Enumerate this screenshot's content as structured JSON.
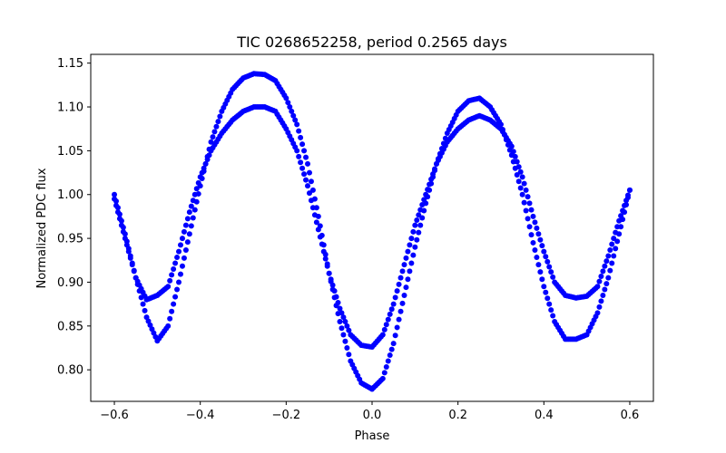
{
  "chart_data": {
    "type": "scatter",
    "title": "TIC 0268652258, period 0.2565 days",
    "xlabel": "Phase",
    "ylabel": "Normalized PDC flux",
    "xlim": [
      -0.655,
      0.655
    ],
    "ylim": [
      0.764,
      1.16
    ],
    "xticks": [
      -0.6,
      -0.4,
      -0.2,
      0.0,
      0.2,
      0.4,
      0.6
    ],
    "xtick_labels": [
      "−0.6",
      "−0.4",
      "−0.2",
      "0.0",
      "0.2",
      "0.4",
      "0.6"
    ],
    "yticks": [
      0.8,
      0.85,
      0.9,
      0.95,
      1.0,
      1.05,
      1.1,
      1.15
    ],
    "ytick_labels": [
      "0.80",
      "0.85",
      "0.90",
      "0.95",
      "1.00",
      "1.05",
      "1.10",
      "1.15"
    ],
    "grid": false,
    "marker_color": "#0000ff",
    "series": [
      {
        "x": [
          -0.6,
          -0.575,
          -0.55,
          -0.525,
          -0.5,
          -0.475,
          -0.45,
          -0.425,
          -0.4,
          -0.375,
          -0.35,
          -0.325,
          -0.3,
          -0.275,
          -0.25,
          -0.225,
          -0.2,
          -0.175,
          -0.15,
          -0.125,
          -0.1,
          -0.075,
          -0.05,
          -0.025,
          0.0,
          0.025,
          0.05,
          0.075,
          0.1,
          0.125,
          0.15,
          0.175,
          0.2,
          0.225,
          0.25,
          0.275,
          0.3,
          0.325,
          0.35,
          0.375,
          0.4,
          0.425,
          0.45,
          0.475,
          0.5,
          0.525,
          0.55,
          0.575,
          0.6
        ],
        "y": [
          0.995,
          0.95,
          0.905,
          0.88,
          0.885,
          0.895,
          0.935,
          0.98,
          1.02,
          1.05,
          1.07,
          1.085,
          1.095,
          1.1,
          1.1,
          1.095,
          1.075,
          1.05,
          1.01,
          0.96,
          0.91,
          0.87,
          0.84,
          0.828,
          0.826,
          0.84,
          0.875,
          0.92,
          0.965,
          1.0,
          1.035,
          1.06,
          1.075,
          1.085,
          1.09,
          1.085,
          1.075,
          1.055,
          1.02,
          0.975,
          0.935,
          0.9,
          0.885,
          0.882,
          0.884,
          0.895,
          0.93,
          0.97,
          1.005
        ]
      },
      {
        "x": [
          -0.6,
          -0.575,
          -0.55,
          -0.525,
          -0.5,
          -0.475,
          -0.45,
          -0.425,
          -0.4,
          -0.375,
          -0.35,
          -0.325,
          -0.3,
          -0.275,
          -0.25,
          -0.225,
          -0.2,
          -0.175,
          -0.15,
          -0.125,
          -0.1,
          -0.075,
          -0.05,
          -0.025,
          0.0,
          0.025,
          0.05,
          0.075,
          0.1,
          0.125,
          0.15,
          0.175,
          0.2,
          0.225,
          0.25,
          0.275,
          0.3,
          0.325,
          0.35,
          0.375,
          0.4,
          0.425,
          0.45,
          0.475,
          0.5,
          0.525,
          0.55,
          0.575,
          0.6
        ],
        "y": [
          1.0,
          0.955,
          0.905,
          0.86,
          0.833,
          0.85,
          0.9,
          0.955,
          1.01,
          1.06,
          1.095,
          1.12,
          1.133,
          1.138,
          1.137,
          1.13,
          1.11,
          1.08,
          1.035,
          0.975,
          0.91,
          0.855,
          0.81,
          0.785,
          0.778,
          0.79,
          0.83,
          0.885,
          0.94,
          0.99,
          1.035,
          1.07,
          1.095,
          1.107,
          1.11,
          1.1,
          1.08,
          1.045,
          1.0,
          0.945,
          0.895,
          0.855,
          0.835,
          0.835,
          0.84,
          0.865,
          0.905,
          0.955,
          1.005
        ]
      }
    ]
  }
}
